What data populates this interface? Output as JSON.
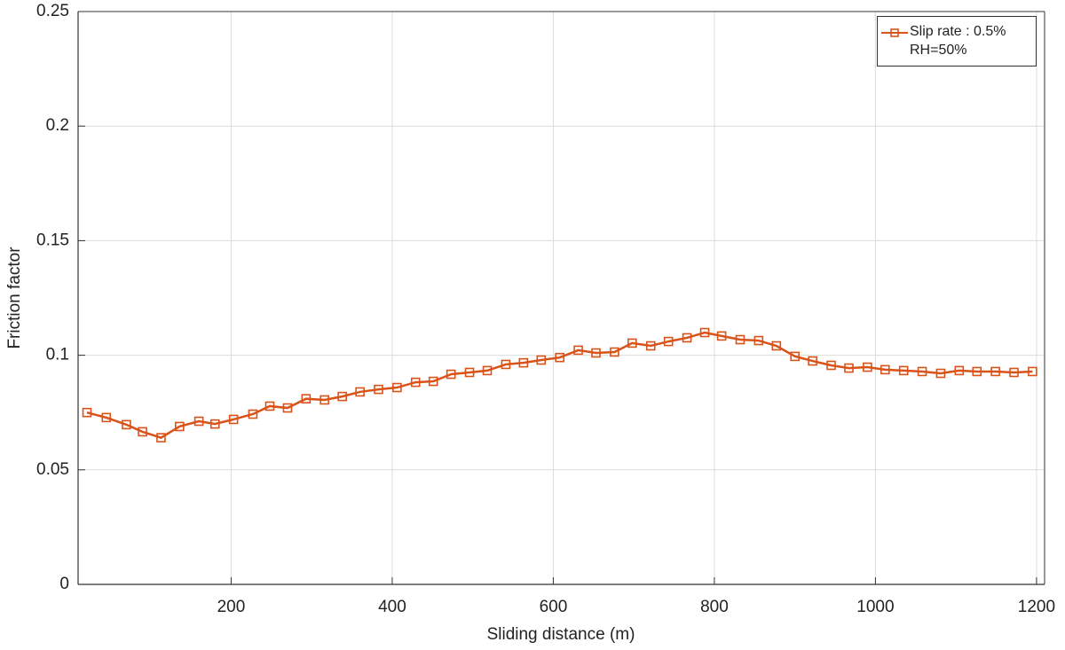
{
  "chart_data": {
    "type": "line",
    "x_label": "Sliding distance (m)",
    "y_label": "Friction factor",
    "x": [
      21,
      45,
      70,
      90,
      113,
      136,
      160,
      180,
      203,
      227,
      248,
      270,
      293,
      316,
      338,
      360,
      383,
      406,
      429,
      451,
      473,
      496,
      518,
      541,
      563,
      585,
      608,
      631,
      653,
      676,
      698,
      721,
      743,
      766,
      788,
      809,
      832,
      855,
      877,
      900,
      922,
      945,
      967,
      990,
      1012,
      1035,
      1058,
      1081,
      1104,
      1126,
      1149,
      1172,
      1195
    ],
    "series": [
      {
        "name": "Slip rate : 0.5%\nRH=50%",
        "color": "#d95319",
        "marker": "square",
        "values": [
          0.075,
          0.0728,
          0.0697,
          0.0666,
          0.064,
          0.0689,
          0.0712,
          0.07,
          0.072,
          0.0743,
          0.0778,
          0.077,
          0.081,
          0.0805,
          0.082,
          0.084,
          0.0851,
          0.0859,
          0.0882,
          0.0886,
          0.0917,
          0.0925,
          0.0933,
          0.096,
          0.0967,
          0.0979,
          0.099,
          0.1022,
          0.101,
          0.1014,
          0.1053,
          0.1041,
          0.106,
          0.1076,
          0.1099,
          0.1084,
          0.1068,
          0.1064,
          0.1041,
          0.0995,
          0.0975,
          0.0956,
          0.0944,
          0.0948,
          0.0937,
          0.0933,
          0.0929,
          0.0921,
          0.0933,
          0.0929,
          0.0929,
          0.0925,
          0.0929
        ]
      }
    ],
    "xlim": [
      10,
      1210
    ],
    "ylim": [
      0,
      0.25
    ],
    "xticks": [
      200,
      400,
      600,
      800,
      1000,
      1200
    ],
    "yticks": [
      0,
      0.05,
      0.1,
      0.15,
      0.2,
      0.25
    ],
    "grid": true,
    "legend": "upper right"
  }
}
